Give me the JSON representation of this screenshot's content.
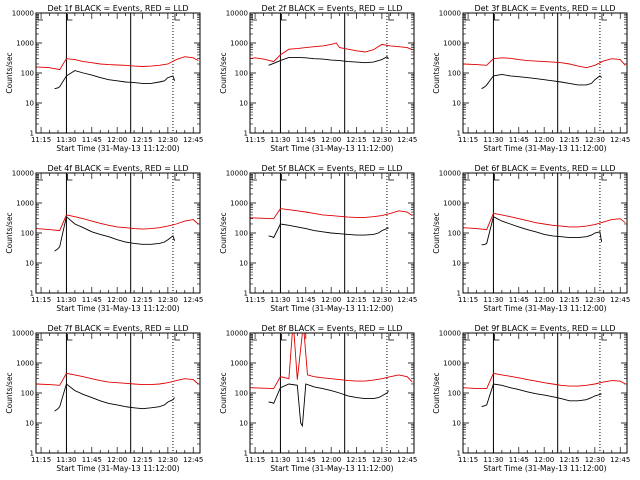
{
  "chart_data": {
    "layout": {
      "rows": 3,
      "cols": 3
    },
    "shared": {
      "type": "line",
      "xlabel": "Start Time (31-May-13 11:12:00)",
      "ylabel": "Counts/sec",
      "yscale": "log",
      "ylim": [
        1,
        10000
      ],
      "yticks": [
        "1",
        "10",
        "100",
        "1000",
        "10000"
      ],
      "xlim": [
        "11:12",
        "12:49"
      ],
      "xticks": [
        "11:15",
        "11:30",
        "11:45",
        "12:00",
        "12:15",
        "12:30",
        "12:45"
      ],
      "series_names": [
        "BLACK = Events",
        "RED = LLD"
      ],
      "colors": {
        "black": "#000000",
        "red": "#e00000"
      },
      "annotations": {
        "solid_vlines": [
          "11:30",
          "12:08"
        ],
        "dotted_vlines": [
          "12:33"
        ]
      }
    },
    "panels": [
      {
        "title": "Det 1f BLACK = Events, RED = LLD",
        "series": [
          {
            "name": "Events",
            "color": "#000000",
            "x": [
              "11:23",
              "11:25",
              "11:26",
              "11:30",
              "11:35",
              "11:40",
              "11:45",
              "11:50",
              "11:55",
              "12:00",
              "12:05",
              "12:10",
              "12:15",
              "12:20",
              "12:25",
              "12:28",
              "12:30",
              "12:33",
              "12:34"
            ],
            "y": [
              30,
              32,
              35,
              80,
              120,
              100,
              85,
              70,
              60,
              55,
              50,
              48,
              45,
              45,
              50,
              55,
              70,
              80,
              55
            ]
          },
          {
            "name": "LLD",
            "color": "#e00000",
            "x": [
              "11:12",
              "11:20",
              "11:26",
              "11:30",
              "11:35",
              "11:40",
              "11:45",
              "11:50",
              "11:55",
              "12:00",
              "12:05",
              "12:10",
              "12:15",
              "12:20",
              "12:25",
              "12:30",
              "12:35",
              "12:40",
              "12:45",
              "12:48"
            ],
            "y": [
              160,
              150,
              130,
              300,
              280,
              240,
              220,
              200,
              190,
              185,
              180,
              170,
              165,
              170,
              180,
              200,
              280,
              350,
              320,
              260
            ]
          }
        ]
      },
      {
        "title": "Det 2f BLACK = Events, RED = LLD",
        "series": [
          {
            "name": "Events",
            "color": "#000000",
            "x": [
              "11:23",
              "11:27",
              "11:30",
              "11:35",
              "11:40",
              "11:45",
              "11:50",
              "11:55",
              "12:00",
              "12:05",
              "12:10",
              "12:15",
              "12:20",
              "12:25",
              "12:28",
              "12:30",
              "12:33",
              "12:34"
            ],
            "y": [
              180,
              220,
              260,
              330,
              330,
              320,
              300,
              290,
              270,
              260,
              240,
              230,
              220,
              230,
              260,
              280,
              350,
              300
            ]
          },
          {
            "name": "LLD",
            "color": "#e00000",
            "x": [
              "11:12",
              "11:15",
              "11:20",
              "11:26",
              "11:30",
              "11:35",
              "11:40",
              "11:45",
              "11:50",
              "11:55",
              "12:00",
              "12:03",
              "12:05",
              "12:10",
              "12:15",
              "12:20",
              "12:25",
              "12:30",
              "12:35",
              "12:40",
              "12:45",
              "12:48"
            ],
            "y": [
              300,
              320,
              290,
              240,
              400,
              620,
              650,
              700,
              750,
              800,
              900,
              1000,
              700,
              620,
              550,
              500,
              600,
              900,
              800,
              750,
              700,
              600
            ]
          }
        ]
      },
      {
        "title": "Det 3f BLACK = Events, RED = LLD",
        "series": [
          {
            "name": "Events",
            "color": "#000000",
            "x": [
              "11:23",
              "11:25",
              "11:26",
              "11:30",
              "11:35",
              "11:40",
              "11:45",
              "11:50",
              "11:55",
              "12:00",
              "12:05",
              "12:10",
              "12:15",
              "12:20",
              "12:25",
              "12:28",
              "12:30",
              "12:33",
              "12:34"
            ],
            "y": [
              30,
              35,
              40,
              80,
              90,
              80,
              75,
              70,
              65,
              60,
              55,
              50,
              45,
              40,
              40,
              45,
              60,
              80,
              70
            ]
          },
          {
            "name": "LLD",
            "color": "#e00000",
            "x": [
              "11:12",
              "11:20",
              "11:26",
              "11:30",
              "11:35",
              "11:40",
              "11:45",
              "11:50",
              "11:55",
              "12:00",
              "12:05",
              "12:10",
              "12:15",
              "12:20",
              "12:25",
              "12:30",
              "12:35",
              "12:40",
              "12:45",
              "12:48"
            ],
            "y": [
              200,
              190,
              180,
              300,
              320,
              310,
              280,
              260,
              250,
              240,
              230,
              220,
              200,
              170,
              150,
              180,
              250,
              300,
              280,
              180
            ]
          }
        ]
      },
      {
        "title": "Det 4f BLACK = Events, RED = LLD",
        "series": [
          {
            "name": "Events",
            "color": "#000000",
            "x": [
              "11:23",
              "11:25",
              "11:26",
              "11:30",
              "11:35",
              "11:40",
              "11:45",
              "11:50",
              "11:55",
              "12:00",
              "12:05",
              "12:10",
              "12:15",
              "12:20",
              "12:25",
              "12:28",
              "12:30",
              "12:33",
              "12:34"
            ],
            "y": [
              25,
              30,
              35,
              350,
              200,
              150,
              110,
              90,
              75,
              60,
              50,
              45,
              42,
              42,
              45,
              50,
              60,
              80,
              55
            ]
          },
          {
            "name": "LLD",
            "color": "#e00000",
            "x": [
              "11:12",
              "11:20",
              "11:26",
              "11:30",
              "11:35",
              "11:40",
              "11:45",
              "11:50",
              "11:55",
              "12:00",
              "12:05",
              "12:10",
              "12:15",
              "12:20",
              "12:25",
              "12:30",
              "12:35",
              "12:40",
              "12:45",
              "12:48"
            ],
            "y": [
              140,
              130,
              120,
              400,
              350,
              300,
              250,
              210,
              180,
              160,
              150,
              140,
              135,
              140,
              150,
              170,
              200,
              250,
              280,
              200
            ]
          }
        ]
      },
      {
        "title": "Det 5f BLACK = Events, RED = LLD",
        "series": [
          {
            "name": "Events",
            "color": "#000000",
            "x": [
              "11:23",
              "11:25",
              "11:26",
              "11:30",
              "11:35",
              "11:40",
              "11:45",
              "11:50",
              "11:55",
              "12:00",
              "12:05",
              "12:10",
              "12:15",
              "12:20",
              "12:25",
              "12:28",
              "12:30",
              "12:33",
              "12:34"
            ],
            "y": [
              80,
              75,
              70,
              200,
              180,
              160,
              140,
              120,
              110,
              100,
              95,
              90,
              85,
              85,
              90,
              100,
              120,
              140,
              150
            ]
          },
          {
            "name": "LLD",
            "color": "#e00000",
            "x": [
              "11:12",
              "11:20",
              "11:26",
              "11:30",
              "11:35",
              "11:40",
              "11:45",
              "11:50",
              "11:55",
              "12:00",
              "12:05",
              "12:10",
              "12:15",
              "12:20",
              "12:25",
              "12:30",
              "12:35",
              "12:40",
              "12:45",
              "12:48"
            ],
            "y": [
              320,
              310,
              300,
              650,
              600,
              550,
              500,
              450,
              400,
              380,
              360,
              340,
              330,
              330,
              350,
              380,
              450,
              550,
              500,
              380
            ]
          }
        ]
      },
      {
        "title": "Det 6f BLACK = Events, RED = LLD",
        "series": [
          {
            "name": "Events",
            "color": "#000000",
            "x": [
              "11:23",
              "11:25",
              "11:26",
              "11:30",
              "11:35",
              "11:40",
              "11:45",
              "11:50",
              "11:55",
              "12:00",
              "12:05",
              "12:10",
              "12:15",
              "12:20",
              "12:25",
              "12:28",
              "12:30",
              "12:33",
              "12:34"
            ],
            "y": [
              40,
              42,
              45,
              350,
              250,
              200,
              160,
              130,
              110,
              90,
              80,
              75,
              70,
              70,
              75,
              85,
              100,
              110,
              50
            ]
          },
          {
            "name": "LLD",
            "color": "#e00000",
            "x": [
              "11:12",
              "11:20",
              "11:26",
              "11:30",
              "11:35",
              "11:40",
              "11:45",
              "11:50",
              "11:55",
              "12:00",
              "12:05",
              "12:10",
              "12:15",
              "12:20",
              "12:25",
              "12:30",
              "12:35",
              "12:40",
              "12:45",
              "12:48"
            ],
            "y": [
              150,
              140,
              130,
              450,
              400,
              350,
              300,
              260,
              220,
              200,
              180,
              170,
              160,
              160,
              170,
              190,
              230,
              280,
              300,
              220
            ]
          }
        ]
      },
      {
        "title": "Det 7f BLACK = Events, RED = LLD",
        "series": [
          {
            "name": "Events",
            "color": "#000000",
            "x": [
              "11:23",
              "11:25",
              "11:26",
              "11:30",
              "11:35",
              "11:40",
              "11:45",
              "11:50",
              "11:55",
              "12:00",
              "12:05",
              "12:10",
              "12:15",
              "12:20",
              "12:25",
              "12:28",
              "12:30",
              "12:33",
              "12:34"
            ],
            "y": [
              25,
              30,
              35,
              200,
              120,
              90,
              70,
              55,
              45,
              40,
              35,
              32,
              30,
              32,
              35,
              40,
              50,
              60,
              70
            ]
          },
          {
            "name": "LLD",
            "color": "#e00000",
            "x": [
              "11:12",
              "11:20",
              "11:26",
              "11:30",
              "11:35",
              "11:40",
              "11:45",
              "11:50",
              "11:55",
              "12:00",
              "12:05",
              "12:10",
              "12:15",
              "12:20",
              "12:25",
              "12:30",
              "12:35",
              "12:40",
              "12:45",
              "12:48"
            ],
            "y": [
              200,
              190,
              180,
              450,
              400,
              350,
              300,
              260,
              230,
              220,
              210,
              200,
              190,
              190,
              200,
              220,
              260,
              300,
              280,
              200
            ]
          }
        ]
      },
      {
        "title": "Det 8f BLACK = Events, RED = LLD",
        "series": [
          {
            "name": "Events",
            "color": "#000000",
            "x": [
              "11:23",
              "11:25",
              "11:26",
              "11:30",
              "11:35",
              "11:40",
              "11:42",
              "11:43",
              "11:45",
              "11:50",
              "11:55",
              "12:00",
              "12:05",
              "12:10",
              "12:15",
              "12:20",
              "12:25",
              "12:28",
              "12:30",
              "12:33",
              "12:34"
            ],
            "y": [
              50,
              48,
              45,
              150,
              200,
              180,
              10,
              8,
              200,
              160,
              140,
              120,
              100,
              80,
              70,
              65,
              65,
              70,
              80,
              100,
              120
            ]
          },
          {
            "name": "LLD",
            "color": "#e00000",
            "x": [
              "11:12",
              "11:20",
              "11:26",
              "11:30",
              "11:35",
              "11:37",
              "11:38",
              "11:40",
              "11:43",
              "11:44",
              "11:46",
              "11:50",
              "11:55",
              "12:00",
              "12:05",
              "12:10",
              "12:15",
              "12:20",
              "12:25",
              "12:30",
              "12:35",
              "12:40",
              "12:45",
              "12:48"
            ],
            "y": [
              150,
              145,
              140,
              350,
              300,
              10000,
              10000,
              280,
              10000,
              10000,
              400,
              350,
              320,
              300,
              280,
              260,
              250,
              250,
              270,
              300,
              350,
              400,
              350,
              230
            ]
          }
        ]
      },
      {
        "title": "Det 9f BLACK = Events, RED = LLD",
        "series": [
          {
            "name": "Events",
            "color": "#000000",
            "x": [
              "11:23",
              "11:25",
              "11:26",
              "11:30",
              "11:35",
              "11:40",
              "11:45",
              "11:50",
              "11:55",
              "12:00",
              "12:05",
              "12:10",
              "12:15",
              "12:20",
              "12:25",
              "12:28",
              "12:30",
              "12:33",
              "12:34"
            ],
            "y": [
              35,
              38,
              40,
              200,
              180,
              150,
              130,
              110,
              95,
              85,
              75,
              65,
              55,
              55,
              60,
              70,
              80,
              90,
              95
            ]
          },
          {
            "name": "LLD",
            "color": "#e00000",
            "x": [
              "11:12",
              "11:20",
              "11:26",
              "11:30",
              "11:35",
              "11:40",
              "11:45",
              "11:50",
              "11:55",
              "12:00",
              "12:05",
              "12:10",
              "12:15",
              "12:20",
              "12:25",
              "12:30",
              "12:35",
              "12:40",
              "12:45",
              "12:48"
            ],
            "y": [
              150,
              140,
              140,
              450,
              400,
              360,
              320,
              280,
              250,
              220,
              200,
              180,
              170,
              170,
              180,
              200,
              230,
              260,
              250,
              200
            ]
          }
        ]
      }
    ]
  }
}
